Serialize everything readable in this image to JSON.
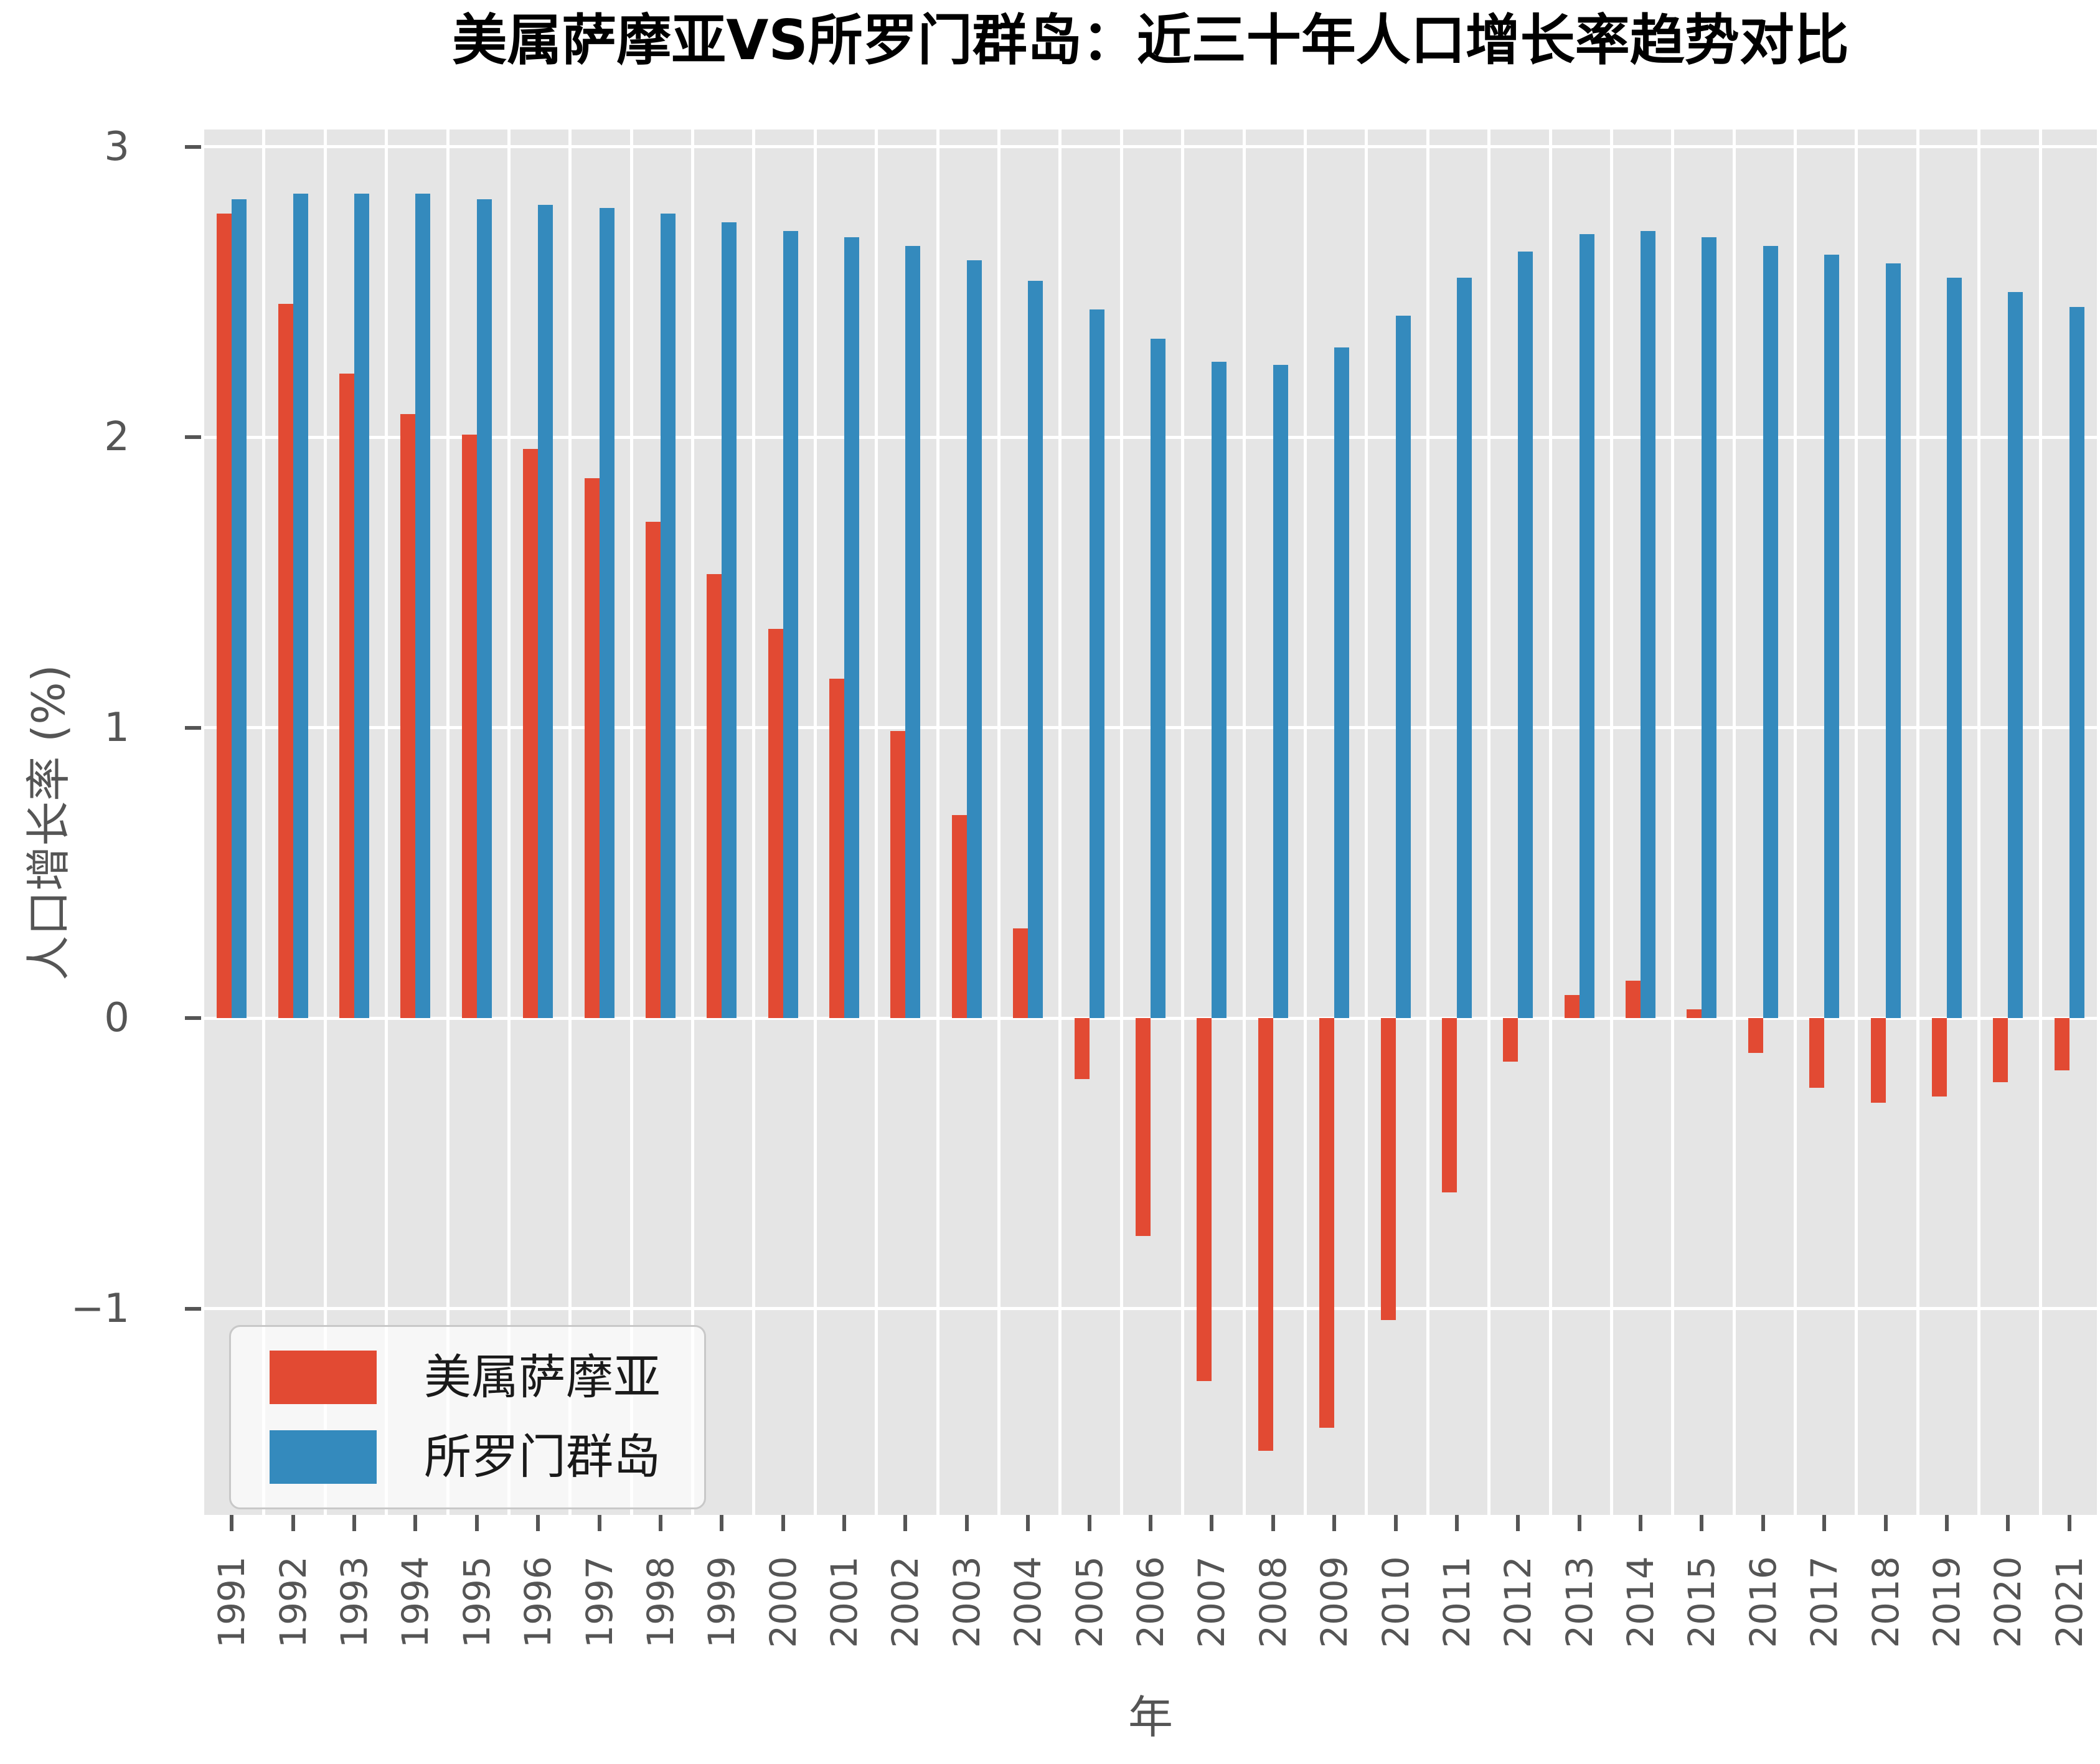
{
  "title": "美属萨摩亚VS所罗门群岛：近三十年人口增长率趋势对比",
  "axes": {
    "x_label": "年",
    "y_label": "人口增长率 (%)",
    "y_tick_labels": [
      "3",
      "2",
      "1",
      "0",
      "−1"
    ],
    "y_tick_values": [
      3,
      2,
      1,
      0,
      -1
    ]
  },
  "legend": {
    "items": [
      {
        "label": "美属萨摩亚",
        "color": "#E24A33"
      },
      {
        "label": "所罗门群岛",
        "color": "#348ABD"
      }
    ]
  },
  "colors": {
    "figure_background": "#ffffff",
    "plot_background": "#E5E5E5",
    "gridline": "#ffffff",
    "tick_text": "#555555",
    "title_text": "#000000",
    "series_red": "#E24A33",
    "series_blue": "#348ABD"
  },
  "chart_data": {
    "type": "bar",
    "title": "美属萨摩亚VS所罗门群岛：近三十年人口增长率趋势对比",
    "xlabel": "年",
    "ylabel": "人口增长率 (%)",
    "categories": [
      "1991",
      "1992",
      "1993",
      "1994",
      "1995",
      "1996",
      "1997",
      "1998",
      "1999",
      "2000",
      "2001",
      "2002",
      "2003",
      "2004",
      "2005",
      "2006",
      "2007",
      "2008",
      "2009",
      "2010",
      "2011",
      "2012",
      "2013",
      "2014",
      "2015",
      "2016",
      "2017",
      "2018",
      "2019",
      "2020",
      "2021"
    ],
    "series": [
      {
        "name": "美属萨摩亚",
        "color": "#E24A33",
        "values": [
          2.77,
          2.46,
          2.22,
          2.08,
          2.01,
          1.96,
          1.86,
          1.71,
          1.53,
          1.34,
          1.17,
          0.99,
          0.7,
          0.31,
          -0.21,
          -0.75,
          -1.25,
          -1.49,
          -1.41,
          -1.04,
          -0.6,
          -0.15,
          0.08,
          0.13,
          0.03,
          -0.12,
          -0.24,
          -0.29,
          -0.27,
          -0.22,
          -0.18
        ]
      },
      {
        "name": "所罗门群岛",
        "color": "#348ABD",
        "values": [
          2.82,
          2.84,
          2.84,
          2.84,
          2.82,
          2.8,
          2.79,
          2.77,
          2.74,
          2.71,
          2.69,
          2.66,
          2.61,
          2.54,
          2.44,
          2.34,
          2.26,
          2.25,
          2.31,
          2.42,
          2.55,
          2.64,
          2.7,
          2.71,
          2.69,
          2.66,
          2.63,
          2.6,
          2.55,
          2.5,
          2.45
        ]
      }
    ],
    "ylim": [
      -1.71,
      3.06
    ],
    "yticks": [
      3,
      2,
      1,
      0,
      -1
    ],
    "grid": true,
    "legend_position": "lower left"
  }
}
